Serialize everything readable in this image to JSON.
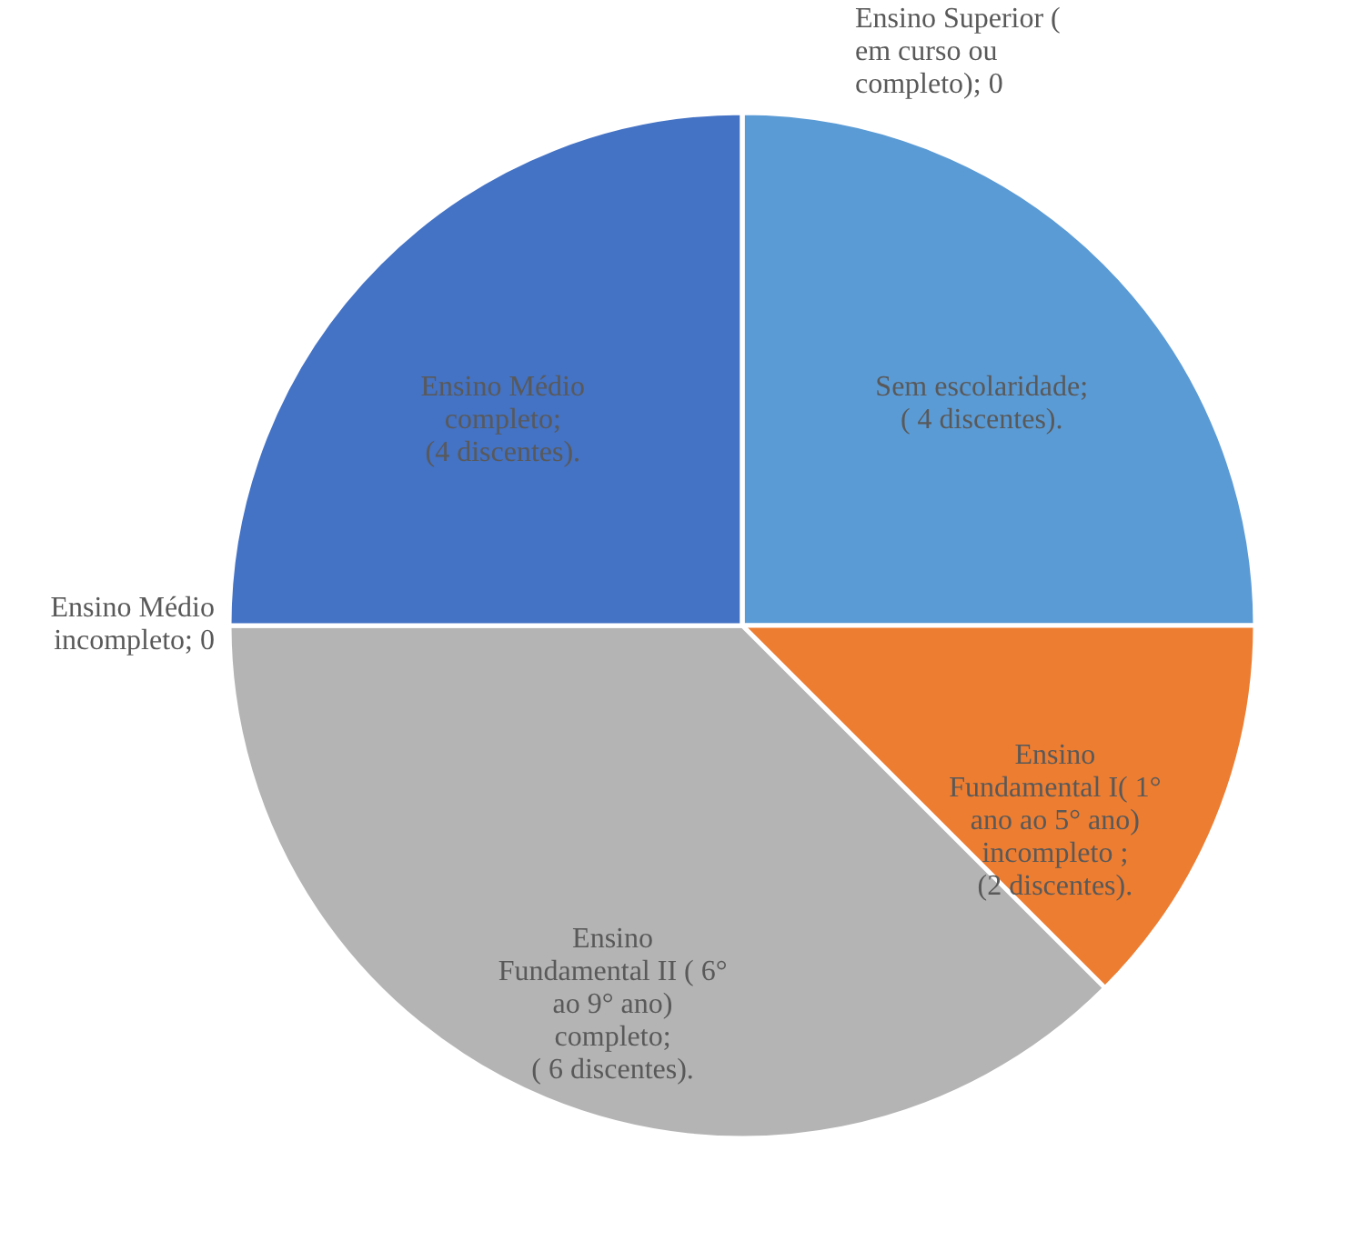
{
  "chart_data": {
    "type": "pie",
    "categories": [
      "Sem escolaridade;\n( 4 discentes).",
      "Ensino\nFundamental I( 1°\nano ao 5° ano)\nincompleto ;\n(2 discentes).",
      "Ensino\nFundamental II ( 6°\nao 9° ano)\ncompleto;\n( 6 discentes).",
      "Ensino Médio\nincompleto; 0",
      "Ensino Médio\ncompleto;\n(4 discentes).",
      "Ensino Superior (\nem curso ou\ncompleto); 0"
    ],
    "values": [
      4,
      2,
      6,
      0,
      4,
      0
    ],
    "colors": [
      "#5b9bd5",
      "#ed7d31",
      "#b4b4b4",
      "#ffc000",
      "#4472c4",
      "#70ad47"
    ]
  }
}
